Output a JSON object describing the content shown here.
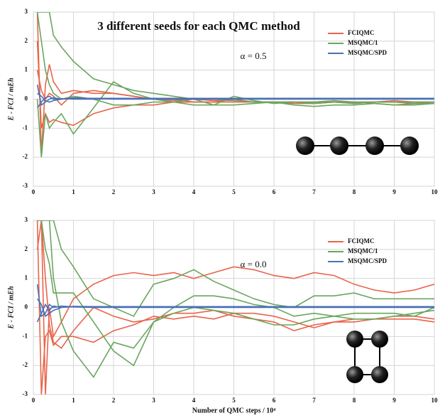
{
  "chart_data": [
    {
      "type": "line",
      "title": "3 different seeds for each QMC method",
      "annotation": "α = 0.5",
      "y_label": "E - FCI / mEh",
      "x": [
        0.1,
        0.2,
        0.3,
        0.4,
        0.5,
        0.7,
        1,
        1.5,
        2,
        2.5,
        3,
        3.5,
        4,
        4.5,
        5,
        5.5,
        6,
        6.5,
        7,
        7.5,
        8,
        8.5,
        9,
        9.5,
        10
      ],
      "xlim": [
        0,
        10
      ],
      "xticks": [
        0,
        1,
        2,
        3,
        4,
        5,
        6,
        7,
        8,
        9,
        10
      ],
      "ylim": [
        -3,
        3
      ],
      "yticks": [
        -3,
        -2,
        -1,
        0,
        1,
        2,
        3
      ],
      "grid": true,
      "legend": "upper-right",
      "series": [
        {
          "name": "FCIQMC",
          "color": "#e8644a",
          "runs": [
            [
              3,
              -1.9,
              0.5,
              1.2,
              0.6,
              0.2,
              0.3,
              0.2,
              0.2,
              0.1,
              0,
              0,
              -0.1,
              -0.1,
              -0.1,
              -0.1,
              -0.1,
              -0.1,
              -0.1,
              -0.1,
              -0.1,
              -0.15,
              -0.2,
              -0.15,
              -0.1
            ],
            [
              2,
              -1,
              -0.5,
              -0.8,
              -0.7,
              -0.8,
              -0.9,
              -0.5,
              -0.3,
              -0.2,
              -0.2,
              -0.1,
              -0.1,
              -0.1,
              0,
              -0.1,
              -0.1,
              -0.15,
              -0.15,
              -0.1,
              -0.15,
              -0.1,
              -0.1,
              -0.1,
              -0.1
            ],
            [
              1,
              0.3,
              0,
              0.2,
              0.1,
              -0.2,
              0.2,
              0.3,
              0.2,
              0.1,
              0,
              -0.05,
              0,
              -0.05,
              -0.05,
              -0.1,
              -0.1,
              -0.1,
              -0.15,
              -0.1,
              -0.1,
              -0.1,
              -0.05,
              -0.1,
              -0.1
            ]
          ]
        },
        {
          "name": "MSQMC/1",
          "color": "#6aa65e",
          "runs": [
            [
              3,
              3,
              3,
              3,
              2.2,
              1.8,
              1.3,
              0.7,
              0.5,
              0.3,
              0.2,
              0.1,
              0,
              0,
              -0.05,
              -0.1,
              -0.1,
              -0.1,
              -0.15,
              -0.1,
              -0.15,
              -0.1,
              -0.1,
              -0.15,
              -0.15
            ],
            [
              0,
              -2,
              -0.5,
              -1,
              -0.8,
              -0.5,
              -1.2,
              -0.3,
              0.6,
              0.2,
              0,
              -0.1,
              -0.2,
              -0.2,
              -0.2,
              -0.15,
              -0.1,
              -0.2,
              -0.25,
              -0.2,
              -0.2,
              -0.15,
              -0.2,
              -0.2,
              -0.15
            ],
            [
              3,
              2,
              1,
              0.5,
              0.2,
              0,
              0.1,
              0,
              -0.2,
              -0.2,
              -0.1,
              -0.1,
              0,
              -0.2,
              0.1,
              -0.05,
              -0.15,
              -0.1,
              -0.1,
              -0.05,
              -0.1,
              -0.1,
              -0.1,
              -0.1,
              -0.1
            ]
          ]
        },
        {
          "name": "MSQMC/SPD",
          "color": "#4a6fb5",
          "runs": [
            [
              0.5,
              -0.2,
              -0.1,
              0,
              0.05,
              0,
              0.05,
              0.02,
              0,
              0,
              0,
              0,
              0,
              0,
              0,
              0,
              0,
              0,
              0,
              0,
              0,
              0,
              0,
              0,
              0
            ],
            [
              -0.3,
              -0.1,
              0.05,
              0.1,
              0,
              0.02,
              0,
              0,
              0.02,
              0.02,
              0.02,
              0.02,
              0.02,
              0.02,
              0.02,
              0.02,
              0.02,
              0.02,
              0.02,
              0.02,
              0.02,
              0.02,
              0.02,
              0.02,
              0.02
            ],
            [
              0.2,
              0.1,
              -0.05,
              -0.1,
              -0.05,
              0,
              0.03,
              0.03,
              0.03,
              0.03,
              0.03,
              0.03,
              0.03,
              0.03,
              0.03,
              0.03,
              0.03,
              0.03,
              0.03,
              0.03,
              0.03,
              0.03,
              0.03,
              0.03,
              0.03
            ]
          ]
        }
      ]
    },
    {
      "type": "line",
      "annotation": "α = 0.0",
      "y_label": "E - FCI / mEh",
      "x_label": "Number of QMC steps / 10⁴",
      "x": [
        0.1,
        0.2,
        0.3,
        0.4,
        0.5,
        0.7,
        1,
        1.5,
        2,
        2.5,
        3,
        3.5,
        4,
        4.5,
        5,
        5.5,
        6,
        6.5,
        7,
        7.5,
        8,
        8.5,
        9,
        9.5,
        10
      ],
      "xlim": [
        0,
        10
      ],
      "xticks": [
        0,
        1,
        2,
        3,
        4,
        5,
        6,
        7,
        8,
        9,
        10
      ],
      "ylim": [
        -3,
        3
      ],
      "yticks": [
        -3,
        -2,
        -1,
        0,
        1,
        2,
        3
      ],
      "grid": true,
      "legend": "upper-right",
      "series": [
        {
          "name": "FCIQMC",
          "color": "#e8644a",
          "runs": [
            [
              3,
              3,
              -3,
              0,
              -1,
              -0.5,
              0.3,
              0.8,
              1.1,
              1.2,
              1.1,
              1.2,
              1,
              1.2,
              1.4,
              1.3,
              1.1,
              1,
              1.2,
              1.1,
              0.8,
              0.6,
              0.5,
              0.6,
              0.8
            ],
            [
              3,
              -3,
              -1,
              -0.8,
              -1.3,
              -1,
              -1,
              -1.2,
              -0.8,
              -0.6,
              -0.3,
              -0.4,
              -0.3,
              -0.4,
              -0.2,
              -0.2,
              -0.3,
              -0.5,
              -0.7,
              -0.5,
              -0.4,
              -0.4,
              -0.3,
              -0.3,
              -0.4
            ],
            [
              2,
              3,
              1,
              -0.6,
              -1.2,
              -1.4,
              -0.8,
              0,
              -0.3,
              -0.5,
              -0.4,
              -0.2,
              -0.2,
              -0.1,
              -0.3,
              -0.4,
              -0.5,
              -0.8,
              -0.6,
              -0.5,
              -0.5,
              -0.4,
              -0.4,
              -0.4,
              -0.5
            ]
          ]
        },
        {
          "name": "MSQMC/1",
          "color": "#6aa65e",
          "runs": [
            [
              3,
              3,
              3,
              3,
              3,
              2,
              1.4,
              0.3,
              0,
              -0.3,
              0.8,
              1,
              1.3,
              0.9,
              0.6,
              0.3,
              0.1,
              0,
              0.4,
              0.4,
              0.5,
              0.3,
              0.3,
              0.3,
              0.3
            ],
            [
              3,
              3,
              3,
              3,
              1,
              -0.5,
              -1.5,
              -2.4,
              -1.2,
              -1.4,
              -0.5,
              0,
              0.4,
              0.4,
              0.3,
              0.1,
              0,
              -0.3,
              -0.2,
              -0.3,
              -0.4,
              -0.4,
              -0.3,
              -0.2,
              -0.1
            ],
            [
              3,
              3,
              2,
              1.5,
              0.5,
              0.5,
              0.5,
              -0.5,
              -1.5,
              -2,
              -0.5,
              -0.2,
              0,
              -0.1,
              -0.2,
              -0.4,
              -0.6,
              -0.6,
              -0.4,
              -0.3,
              -0.2,
              -0.2,
              -0.2,
              -0.3,
              0
            ]
          ]
        },
        {
          "name": "MSQMC/SPD",
          "color": "#4a6fb5",
          "runs": [
            [
              0.8,
              -0.3,
              -0.2,
              0.1,
              0,
              0.05,
              0.02,
              0,
              0,
              0,
              0,
              0,
              0,
              0,
              0,
              0,
              0,
              0,
              0,
              0,
              0,
              0,
              0,
              0,
              0
            ],
            [
              -0.5,
              -0.2,
              0.1,
              -0.1,
              0.05,
              0,
              0.03,
              0.02,
              0.02,
              0.02,
              0.02,
              0.02,
              0.02,
              0.02,
              0.02,
              0.02,
              0.02,
              0.02,
              0.02,
              0.02,
              0.02,
              0.02,
              0.02,
              0.02,
              0.02
            ],
            [
              0.3,
              0.1,
              -0.3,
              -0.2,
              -0.1,
              0,
              0.04,
              0.03,
              0.03,
              0.03,
              0.03,
              0.03,
              0.03,
              0.03,
              0.03,
              0.03,
              0.03,
              0.03,
              0.03,
              0.03,
              0.03,
              0.03,
              0.03,
              0.03,
              0.03
            ]
          ]
        }
      ]
    }
  ]
}
